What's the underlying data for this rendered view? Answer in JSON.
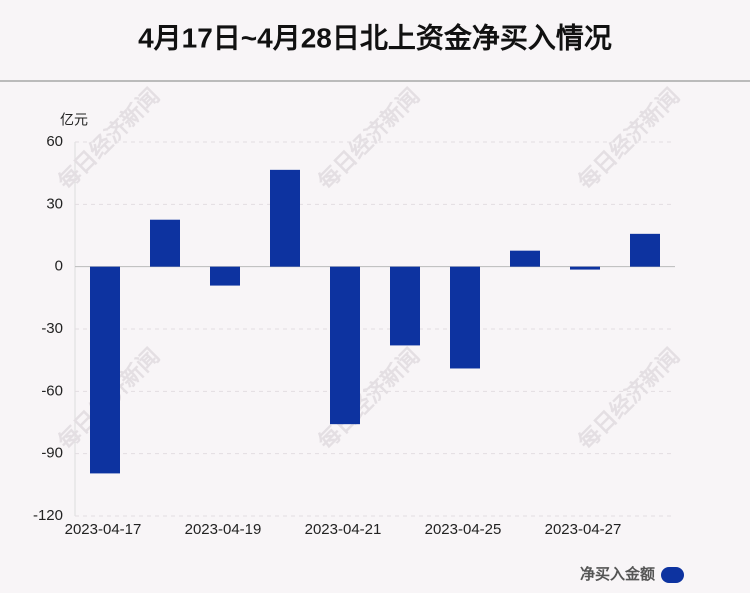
{
  "chart_data": {
    "type": "bar",
    "title": "4月17日~4月28日北上资金净买入情况",
    "y_label": "亿元",
    "watermark": "每日经济新闻",
    "categories": [
      "2023-04-17",
      null,
      "2023-04-19",
      null,
      "2023-04-21",
      null,
      "2023-04-25",
      null,
      "2023-04-27",
      null
    ],
    "series": [
      {
        "name": "净买入金额",
        "color": "#0d33a0",
        "values": [
          -99.5,
          22.6,
          -9.1,
          46.6,
          -75.8,
          -37.9,
          -49.0,
          7.7,
          -1.4,
          15.8
        ]
      }
    ],
    "ylim": [
      -120,
      60
    ],
    "yticks": [
      -120,
      -90,
      -60,
      -30,
      0,
      30,
      60
    ],
    "grid": true,
    "legend": "bottom-right"
  }
}
